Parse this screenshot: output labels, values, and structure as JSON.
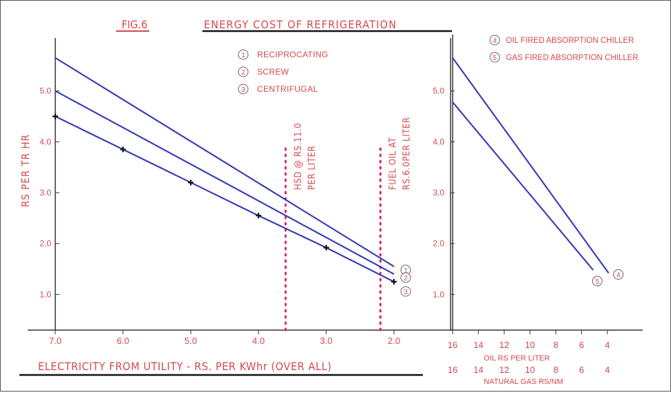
{
  "header": {
    "fig_label": "FIG.6",
    "title": "ENERGY COST OF REFRIGERATION"
  },
  "colors": {
    "line": "#3a3fb5",
    "text": "#d8474f",
    "axis": "#333333",
    "marker": "#111111"
  },
  "chart_data": [
    {
      "type": "line",
      "title": "ENERGY COST OF REFRIGERATION",
      "xlabel": "ELECTRICITY FROM UTILITY - RS. PER KWhr (OVER ALL)",
      "ylabel": "RS PER TR HR",
      "x_ticks": [
        7.0,
        6.0,
        5.0,
        4.0,
        3.0,
        2.0
      ],
      "x_tick_labels": [
        "7.0",
        "6.0",
        "5.0",
        "4.0",
        "3.0",
        "2.0"
      ],
      "y_ticks": [
        1.0,
        2.0,
        3.0,
        4.0,
        5.0
      ],
      "y_tick_labels": [
        "1.0",
        "2.0",
        "3.0",
        "4.0",
        "5.0"
      ],
      "xlim": [
        7.0,
        1.95
      ],
      "ylim": [
        0.3,
        6.0
      ],
      "series": [
        {
          "name": "RECIPROCATING",
          "label": "1",
          "x": [
            7.0,
            2.0
          ],
          "y": [
            5.65,
            1.55
          ]
        },
        {
          "name": "SCREW",
          "label": "2",
          "x": [
            7.0,
            2.0
          ],
          "y": [
            5.0,
            1.4
          ]
        },
        {
          "name": "CENTRIFUGAL",
          "label": "3",
          "x": [
            7.0,
            6.0,
            5.0,
            4.0,
            3.0,
            2.0
          ],
          "y": [
            4.5,
            3.85,
            3.2,
            2.55,
            1.92,
            1.25
          ]
        }
      ],
      "legend": [
        {
          "num": "1",
          "text": "RECIPROCATING"
        },
        {
          "num": "2",
          "text": "SCREW"
        },
        {
          "num": "3",
          "text": "CENTRIFUGAL"
        }
      ],
      "annotations": [
        {
          "x": 3.6,
          "line1": "HSD @ RS.11.0",
          "line2": "PER LITER"
        },
        {
          "x": 2.2,
          "line1": "FUEL OIL AT",
          "line2": "RS.6.0PER LITER"
        }
      ]
    },
    {
      "type": "line",
      "x_ticks": [
        16,
        14,
        12,
        10,
        8,
        6,
        4
      ],
      "x_tick_labels": [
        "16",
        "14",
        "12",
        "10",
        "8",
        "6",
        "4"
      ],
      "xlabel_top": "OIL RS PER LITER",
      "xlabel_bottom": "NATURAL GAS RS/NM",
      "y_ticks": [
        1.0,
        2.0,
        3.0,
        4.0,
        5.0
      ],
      "y_tick_labels": [
        "1.0",
        "2.0",
        "3.0",
        "4.0",
        "5.0"
      ],
      "xlim": [
        16,
        2.6
      ],
      "ylim": [
        0.3,
        6.0
      ],
      "series": [
        {
          "name": "OIL FIRED ABSORPTION CHILLER",
          "label": "4",
          "x": [
            16,
            3.9
          ],
          "y": [
            5.65,
            1.42
          ]
        },
        {
          "name": "GAS FIRED ABSORPTION CHILLER",
          "label": "5",
          "x": [
            16,
            5.1
          ],
          "y": [
            4.78,
            1.48
          ]
        }
      ],
      "legend": [
        {
          "num": "4",
          "text": "OIL FIRED ABSORPTION CHILLER"
        },
        {
          "num": "5",
          "text": "GAS FIRED ABSORPTION CHILLER"
        }
      ]
    }
  ]
}
